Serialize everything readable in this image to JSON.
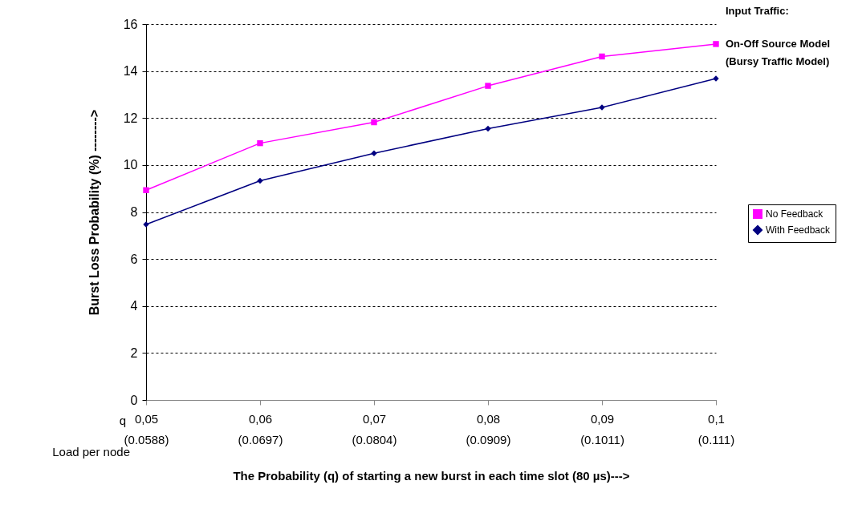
{
  "chart_data": {
    "type": "line",
    "xlabel": "The Probability (q) of starting a new burst in each time slot (80 µs)--->",
    "ylabel": "Burst Loss Probability (%) -------->",
    "categories": [
      "0,05\n(0.0588)",
      "0,06\n(0.0697)",
      "0,07\n(0.0804)",
      "0,08\n(0.0909)",
      "0,09\n(0.1011)",
      "0,1\n(0.111)"
    ],
    "series": [
      {
        "name": "No Feedback",
        "color": "#ff00ff",
        "marker": "square",
        "values": [
          8.93,
          10.93,
          11.82,
          13.37,
          14.62,
          15.15
        ]
      },
      {
        "name": "With Feedback",
        "color": "#000080",
        "marker": "diamond",
        "values": [
          7.47,
          9.33,
          10.5,
          11.55,
          12.45,
          13.68
        ]
      }
    ],
    "ylim": [
      0,
      16
    ],
    "yticks": [
      0,
      2,
      4,
      6,
      8,
      10,
      12,
      14,
      16
    ],
    "grid": "y",
    "legend": "right",
    "line_style": "solid",
    "annotations": [
      "q",
      "Load per node",
      "Input Traffic:",
      "On-Off Source Model\n(Bursy Traffic Model)"
    ]
  }
}
